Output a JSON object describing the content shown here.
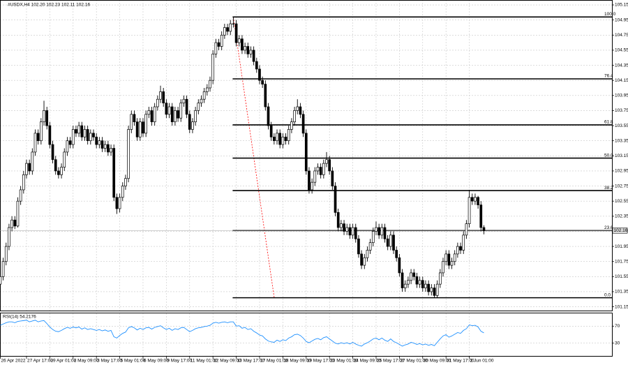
{
  "chart_data": {
    "type": "candlestick",
    "title": "#USDX,H4 102.20 102.23 102.11 102.16",
    "grid": true,
    "ylim": [
      101.1,
      105.215
    ],
    "yticks": [
      105.15,
      104.95,
      104.75,
      104.55,
      104.35,
      104.15,
      103.95,
      103.75,
      103.55,
      103.35,
      103.15,
      102.95,
      102.75,
      102.55,
      102.35,
      102.15,
      101.95,
      101.75,
      101.55,
      101.35,
      101.15
    ],
    "xticks": [
      {
        "value": 0,
        "label": "26 Apr 2022"
      },
      {
        "value": 9,
        "label": "27 Apr 17:00"
      },
      {
        "value": 17,
        "label": "29 Apr 01:00"
      },
      {
        "value": 25,
        "label": "2 May 09:00"
      },
      {
        "value": 33,
        "label": "3 May 17:00"
      },
      {
        "value": 41,
        "label": "5 May 01:00"
      },
      {
        "value": 49,
        "label": "6 May 09:00"
      },
      {
        "value": 57,
        "label": "9 May 17:00"
      },
      {
        "value": 65,
        "label": "11 May 01:00"
      },
      {
        "value": 73,
        "label": "12 May 09:00"
      },
      {
        "value": 81,
        "label": "13 May 17:00"
      },
      {
        "value": 89,
        "label": "17 May 01:00"
      },
      {
        "value": 97,
        "label": "18 May 09:00"
      },
      {
        "value": 105,
        "label": "19 May 17:00"
      },
      {
        "value": 113,
        "label": "23 May 01:00"
      },
      {
        "value": 121,
        "label": "24 May 09:00"
      },
      {
        "value": 129,
        "label": "25 May 17:00"
      },
      {
        "value": 137,
        "label": "27 May 01:00"
      },
      {
        "value": 145,
        "label": "30 May 09:00"
      },
      {
        "value": 153,
        "label": "31 May 17:00"
      },
      {
        "value": 161,
        "label": "2 Jun 01:00"
      }
    ],
    "ohlc": [
      [
        101.45,
        101.6,
        101.4,
        101.55
      ],
      [
        101.55,
        101.8,
        101.5,
        101.75
      ],
      [
        101.75,
        102.0,
        101.7,
        101.95
      ],
      [
        101.95,
        102.25,
        101.9,
        102.2
      ],
      [
        102.2,
        102.35,
        102.15,
        102.3
      ],
      [
        102.3,
        102.35,
        102.18,
        102.22
      ],
      [
        102.22,
        102.6,
        102.2,
        102.55
      ],
      [
        102.55,
        102.75,
        102.5,
        102.7
      ],
      [
        102.7,
        102.95,
        102.65,
        102.9
      ],
      [
        102.9,
        103.1,
        102.85,
        103.05
      ],
      [
        103.05,
        103.1,
        102.9,
        102.95
      ],
      [
        102.95,
        103.25,
        102.9,
        103.2
      ],
      [
        103.2,
        103.5,
        103.15,
        103.45
      ],
      [
        103.45,
        103.5,
        103.3,
        103.35
      ],
      [
        103.35,
        103.65,
        103.3,
        103.6
      ],
      [
        103.6,
        103.88,
        103.55,
        103.75
      ],
      [
        103.75,
        103.8,
        103.5,
        103.55
      ],
      [
        103.55,
        103.6,
        103.25,
        103.3
      ],
      [
        103.3,
        103.35,
        103.05,
        103.1
      ],
      [
        103.1,
        103.15,
        102.9,
        102.95
      ],
      [
        102.95,
        103.0,
        102.85,
        102.9
      ],
      [
        102.9,
        103.05,
        102.85,
        103.0
      ],
      [
        103.0,
        103.25,
        102.95,
        103.2
      ],
      [
        103.2,
        103.4,
        103.15,
        103.35
      ],
      [
        103.35,
        103.4,
        103.25,
        103.3
      ],
      [
        103.3,
        103.55,
        103.25,
        103.5
      ],
      [
        103.5,
        103.55,
        103.4,
        103.45
      ],
      [
        103.45,
        103.6,
        103.4,
        103.55
      ],
      [
        103.55,
        103.6,
        103.35,
        103.4
      ],
      [
        103.4,
        103.55,
        103.35,
        103.5
      ],
      [
        103.5,
        103.55,
        103.3,
        103.35
      ],
      [
        103.35,
        103.5,
        103.3,
        103.45
      ],
      [
        103.45,
        103.5,
        103.35,
        103.4
      ],
      [
        103.4,
        103.45,
        103.25,
        103.3
      ],
      [
        103.3,
        103.4,
        103.25,
        103.35
      ],
      [
        103.35,
        103.4,
        103.2,
        103.25
      ],
      [
        103.25,
        103.35,
        103.2,
        103.3
      ],
      [
        103.3,
        103.35,
        103.15,
        103.2
      ],
      [
        103.2,
        103.3,
        103.15,
        103.25
      ],
      [
        103.25,
        103.3,
        102.55,
        102.6
      ],
      [
        102.6,
        102.65,
        102.38,
        102.45
      ],
      [
        102.45,
        102.65,
        102.4,
        102.6
      ],
      [
        102.6,
        102.8,
        102.55,
        102.75
      ],
      [
        102.75,
        102.9,
        102.7,
        102.85
      ],
      [
        102.85,
        103.55,
        102.8,
        103.5
      ],
      [
        103.5,
        103.75,
        103.45,
        103.7
      ],
      [
        103.7,
        103.75,
        103.55,
        103.6
      ],
      [
        103.6,
        103.65,
        103.35,
        103.4
      ],
      [
        103.4,
        103.65,
        103.35,
        103.6
      ],
      [
        103.6,
        103.65,
        103.4,
        103.45
      ],
      [
        103.45,
        103.75,
        103.4,
        103.7
      ],
      [
        103.7,
        103.8,
        103.65,
        103.75
      ],
      [
        103.75,
        103.8,
        103.55,
        103.6
      ],
      [
        103.6,
        103.85,
        103.55,
        103.8
      ],
      [
        103.8,
        103.95,
        103.75,
        103.9
      ],
      [
        103.9,
        104.08,
        103.85,
        104.0
      ],
      [
        104.0,
        104.05,
        103.8,
        103.85
      ],
      [
        103.85,
        103.9,
        103.65,
        103.7
      ],
      [
        103.7,
        103.85,
        103.65,
        103.8
      ],
      [
        103.8,
        103.85,
        103.55,
        103.6
      ],
      [
        103.6,
        103.8,
        103.55,
        103.75
      ],
      [
        103.75,
        103.8,
        103.6,
        103.65
      ],
      [
        103.65,
        103.9,
        103.6,
        103.85
      ],
      [
        103.85,
        103.95,
        103.8,
        103.9
      ],
      [
        103.9,
        103.95,
        103.65,
        103.7
      ],
      [
        103.7,
        103.75,
        103.45,
        103.5
      ],
      [
        103.5,
        103.65,
        103.45,
        103.6
      ],
      [
        103.6,
        103.8,
        103.55,
        103.75
      ],
      [
        103.75,
        103.9,
        103.7,
        103.85
      ],
      [
        103.85,
        103.95,
        103.8,
        103.9
      ],
      [
        103.9,
        104.05,
        103.85,
        104.0
      ],
      [
        104.0,
        104.1,
        103.95,
        104.05
      ],
      [
        104.05,
        104.2,
        104.0,
        104.15
      ],
      [
        104.15,
        104.55,
        104.1,
        104.5
      ],
      [
        104.5,
        104.7,
        104.45,
        104.65
      ],
      [
        104.65,
        104.7,
        104.55,
        104.6
      ],
      [
        104.6,
        104.8,
        104.55,
        104.75
      ],
      [
        104.75,
        104.9,
        104.7,
        104.85
      ],
      [
        104.85,
        104.9,
        104.75,
        104.8
      ],
      [
        104.8,
        104.95,
        104.75,
        104.9
      ],
      [
        104.9,
        104.99,
        104.85,
        104.9
      ],
      [
        104.9,
        104.95,
        104.6,
        104.65
      ],
      [
        104.65,
        104.75,
        104.6,
        104.7
      ],
      [
        104.7,
        104.75,
        104.5,
        104.55
      ],
      [
        104.55,
        104.65,
        104.5,
        104.6
      ],
      [
        104.6,
        104.65,
        104.45,
        104.5
      ],
      [
        104.5,
        104.6,
        104.45,
        104.55
      ],
      [
        104.55,
        104.6,
        104.35,
        104.4
      ],
      [
        104.4,
        104.45,
        104.25,
        104.3
      ],
      [
        104.3,
        104.35,
        104.1,
        104.15
      ],
      [
        104.15,
        104.2,
        104.05,
        104.1
      ],
      [
        104.1,
        104.15,
        103.75,
        103.8
      ],
      [
        103.8,
        103.85,
        103.5,
        103.55
      ],
      [
        103.55,
        103.6,
        103.35,
        103.4
      ],
      [
        103.4,
        103.45,
        103.3,
        103.35
      ],
      [
        103.35,
        103.5,
        103.3,
        103.45
      ],
      [
        103.45,
        103.5,
        103.25,
        103.3
      ],
      [
        103.3,
        103.45,
        103.25,
        103.4
      ],
      [
        103.4,
        103.45,
        103.3,
        103.35
      ],
      [
        103.35,
        103.55,
        103.3,
        103.5
      ],
      [
        103.5,
        103.65,
        103.45,
        103.6
      ],
      [
        103.6,
        103.8,
        103.55,
        103.75
      ],
      [
        103.75,
        103.9,
        103.7,
        103.8
      ],
      [
        103.8,
        103.85,
        103.65,
        103.7
      ],
      [
        103.7,
        103.75,
        103.4,
        103.45
      ],
      [
        103.45,
        103.5,
        102.9,
        102.95
      ],
      [
        102.95,
        103.0,
        102.65,
        102.7
      ],
      [
        102.7,
        102.85,
        102.65,
        102.8
      ],
      [
        102.8,
        103.0,
        102.75,
        102.95
      ],
      [
        102.95,
        103.05,
        102.9,
        103.0
      ],
      [
        103.0,
        103.05,
        102.85,
        102.9
      ],
      [
        102.9,
        103.1,
        102.85,
        103.05
      ],
      [
        103.05,
        103.2,
        103.0,
        103.1
      ],
      [
        103.1,
        103.15,
        102.9,
        102.95
      ],
      [
        102.95,
        103.0,
        102.7,
        102.75
      ],
      [
        102.75,
        102.8,
        102.35,
        102.4
      ],
      [
        102.4,
        102.45,
        102.15,
        102.2
      ],
      [
        102.2,
        102.3,
        102.15,
        102.25
      ],
      [
        102.25,
        102.3,
        102.1,
        102.15
      ],
      [
        102.15,
        102.25,
        102.1,
        102.2
      ],
      [
        102.2,
        102.25,
        102.05,
        102.1
      ],
      [
        102.1,
        102.25,
        102.05,
        102.2
      ],
      [
        102.2,
        102.25,
        102.0,
        102.05
      ],
      [
        102.05,
        102.1,
        101.8,
        101.85
      ],
      [
        101.85,
        101.9,
        101.65,
        101.7
      ],
      [
        101.7,
        101.85,
        101.65,
        101.8
      ],
      [
        101.8,
        101.95,
        101.75,
        101.9
      ],
      [
        101.9,
        102.05,
        101.85,
        102.0
      ],
      [
        102.0,
        102.2,
        101.95,
        102.15
      ],
      [
        102.15,
        102.28,
        102.1,
        102.2
      ],
      [
        102.2,
        102.25,
        102.05,
        102.1
      ],
      [
        102.1,
        102.25,
        102.05,
        102.2
      ],
      [
        102.2,
        102.25,
        102.0,
        102.05
      ],
      [
        102.05,
        102.1,
        101.9,
        101.95
      ],
      [
        101.95,
        102.15,
        101.9,
        102.1
      ],
      [
        102.1,
        102.15,
        101.85,
        101.9
      ],
      [
        101.9,
        101.95,
        101.75,
        101.8
      ],
      [
        101.8,
        101.85,
        101.55,
        101.6
      ],
      [
        101.6,
        101.65,
        101.35,
        101.4
      ],
      [
        101.4,
        101.5,
        101.35,
        101.45
      ],
      [
        101.45,
        101.55,
        101.4,
        101.5
      ],
      [
        101.5,
        101.65,
        101.45,
        101.6
      ],
      [
        101.6,
        101.65,
        101.5,
        101.55
      ],
      [
        101.55,
        101.6,
        101.4,
        101.45
      ],
      [
        101.45,
        101.55,
        101.4,
        101.5
      ],
      [
        101.5,
        101.55,
        101.35,
        101.4
      ],
      [
        101.4,
        101.5,
        101.35,
        101.45
      ],
      [
        101.45,
        101.5,
        101.3,
        101.35
      ],
      [
        101.35,
        101.45,
        101.3,
        101.4
      ],
      [
        101.4,
        101.45,
        101.27,
        101.3
      ],
      [
        101.3,
        101.5,
        101.27,
        101.45
      ],
      [
        101.45,
        101.65,
        101.4,
        101.6
      ],
      [
        101.6,
        101.8,
        101.55,
        101.75
      ],
      [
        101.75,
        101.9,
        101.7,
        101.85
      ],
      [
        101.85,
        101.9,
        101.65,
        101.7
      ],
      [
        101.7,
        101.8,
        101.65,
        101.75
      ],
      [
        101.75,
        101.9,
        101.7,
        101.85
      ],
      [
        101.85,
        102.0,
        101.8,
        101.95
      ],
      [
        101.95,
        102.0,
        101.85,
        101.9
      ],
      [
        101.9,
        102.15,
        101.85,
        102.1
      ],
      [
        102.1,
        102.3,
        102.05,
        102.25
      ],
      [
        102.25,
        102.7,
        102.2,
        102.6
      ],
      [
        102.6,
        102.65,
        102.5,
        102.55
      ],
      [
        102.55,
        102.65,
        102.5,
        102.6
      ],
      [
        102.6,
        102.62,
        102.45,
        102.5
      ],
      [
        102.5,
        102.55,
        102.15,
        102.2
      ],
      [
        102.2,
        102.23,
        102.11,
        102.16
      ]
    ],
    "bull_color": "#ffffff",
    "bear_color": "#000000",
    "last_price": 102.16,
    "fibonacci": {
      "color": "#000000",
      "trend_color": "#ff0000",
      "levels": [
        {
          "name": "100.0",
          "price": 104.99
        },
        {
          "name": "76.4",
          "price": 104.17
        },
        {
          "name": "61.8",
          "price": 103.56
        },
        {
          "name": "50.0",
          "price": 103.12
        },
        {
          "name": "38.2",
          "price": 102.69
        },
        {
          "name": "23.6",
          "price": 102.16
        },
        {
          "name": "0.0",
          "price": 101.27
        }
      ]
    },
    "rsi": {
      "title": "RSI(14) 54.2176",
      "color": "#1e90ff",
      "ylim": [
        0,
        100
      ],
      "yticks": [
        70,
        30
      ],
      "values": [
        72,
        75,
        78,
        80,
        80,
        78,
        81,
        82,
        83,
        84,
        80,
        82,
        84,
        80,
        82,
        83,
        76,
        68,
        62,
        58,
        57,
        60,
        64,
        67,
        65,
        68,
        66,
        68,
        63,
        66,
        62,
        64,
        62,
        60,
        62,
        59,
        61,
        58,
        60,
        45,
        42,
        48,
        53,
        56,
        66,
        69,
        66,
        61,
        65,
        62,
        66,
        67,
        63,
        67,
        69,
        71,
        66,
        62,
        65,
        60,
        64,
        62,
        66,
        67,
        62,
        57,
        60,
        64,
        66,
        67,
        69,
        70,
        72,
        77,
        79,
        77,
        79,
        80,
        78,
        80,
        80,
        70,
        71,
        65,
        67,
        62,
        64,
        58,
        54,
        49,
        47,
        40,
        35,
        33,
        32,
        37,
        34,
        38,
        36,
        42,
        45,
        50,
        51,
        48,
        42,
        34,
        31,
        35,
        39,
        41,
        38,
        43,
        45,
        40,
        35,
        30,
        28,
        31,
        29,
        31,
        28,
        32,
        28,
        25,
        23,
        28,
        31,
        35,
        40,
        42,
        38,
        42,
        37,
        34,
        40,
        34,
        31,
        27,
        23,
        26,
        28,
        32,
        30,
        27,
        29,
        26,
        28,
        25,
        27,
        24,
        32,
        40,
        47,
        50,
        44,
        47,
        51,
        55,
        53,
        60,
        64,
        73,
        71,
        72,
        68,
        58,
        54.22
      ]
    }
  }
}
